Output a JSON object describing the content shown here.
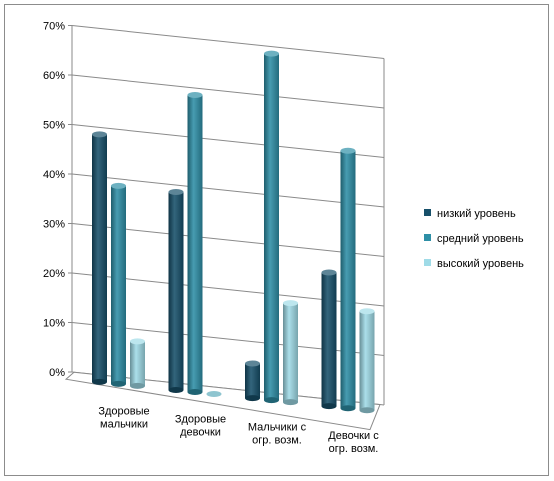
{
  "chart_data": {
    "type": "bar",
    "categories": [
      [
        "Здоровые",
        "мальчики"
      ],
      [
        "Здоровые",
        "девочки"
      ],
      [
        "Мальчики с",
        "огр. возм."
      ],
      [
        "Девочки с",
        "огр. возм."
      ]
    ],
    "series": [
      {
        "name": "низкий уровень",
        "color": "#17506a",
        "values": [
          50,
          40,
          7,
          27
        ]
      },
      {
        "name": "средний уровень",
        "color": "#2e8fa6",
        "values": [
          40,
          60,
          70,
          52
        ]
      },
      {
        "name": "высокий уровень",
        "color": "#9fdbe7",
        "values": [
          9,
          0,
          20,
          20
        ]
      }
    ],
    "y_ticks": [
      "0%",
      "10%",
      "20%",
      "30%",
      "40%",
      "50%",
      "60%",
      "70%"
    ],
    "ylim": [
      0,
      70
    ],
    "grid": true,
    "legend": "right",
    "title": "",
    "xlabel": "",
    "ylabel": ""
  }
}
